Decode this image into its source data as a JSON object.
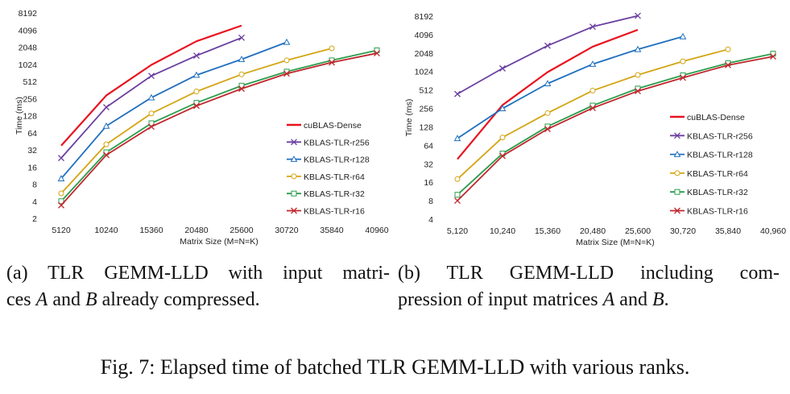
{
  "chart_data": [
    {
      "type": "line",
      "xlabel": "Matrix Size (M=N=K)",
      "ylabel": "Time (ms)",
      "y_scale": "log2",
      "ylim": [
        2,
        8192
      ],
      "x_tick_labels": [
        "5120",
        "10240",
        "15360",
        "20480",
        "25600",
        "30720",
        "35840",
        "40960"
      ],
      "y_tick_labels": [
        "2",
        "4",
        "8",
        "16",
        "32",
        "64",
        "128",
        "256",
        "512",
        "1024",
        "2048",
        "4096",
        "8192"
      ],
      "legend_position": "right",
      "series": [
        {
          "name": "cuBLAS-Dense",
          "color": "#e8131f",
          "marker": "none",
          "x": [
            5120,
            10240,
            15360,
            20480,
            25600
          ],
          "values": [
            38,
            290,
            1000,
            2600,
            4900
          ]
        },
        {
          "name": "KBLAS-TLR-r256",
          "color": "#6b3fa0",
          "marker": "x",
          "x": [
            5120,
            10240,
            15360,
            20480,
            25600
          ],
          "values": [
            23,
            180,
            640,
            1450,
            3000
          ]
        },
        {
          "name": "KBLAS-TLR-r128",
          "color": "#1f6fbf",
          "marker": "triangle",
          "x": [
            5120,
            10240,
            15360,
            20480,
            25600,
            30720
          ],
          "values": [
            10,
            84,
            265,
            660,
            1250,
            2500
          ]
        },
        {
          "name": "KBLAS-TLR-r64",
          "color": "#d4a514",
          "marker": "circle",
          "x": [
            5120,
            10240,
            15360,
            20480,
            25600,
            30720,
            35840
          ],
          "values": [
            5.5,
            40,
            140,
            340,
            680,
            1200,
            1950
          ]
        },
        {
          "name": "KBLAS-TLR-r32",
          "color": "#2a9d4b",
          "marker": "square",
          "x": [
            5120,
            10240,
            15360,
            20480,
            25600,
            30720,
            35840,
            40960
          ],
          "values": [
            4,
            29,
            94,
            215,
            430,
            760,
            1200,
            1800
          ]
        },
        {
          "name": "KBLAS-TLR-r16",
          "color": "#c0272d",
          "marker": "x",
          "x": [
            5120,
            10240,
            15360,
            20480,
            25600,
            30720,
            35840,
            40960
          ],
          "values": [
            3.4,
            26,
            82,
            190,
            380,
            700,
            1100,
            1600
          ]
        }
      ]
    },
    {
      "type": "line",
      "xlabel": "Matrix Size (M=N=K)",
      "ylabel": "Time (ms)",
      "y_scale": "log2",
      "ylim": [
        4,
        8192
      ],
      "x_tick_labels": [
        "5,120",
        "10,240",
        "15,360",
        "20,480",
        "25,600",
        "30,720",
        "35,840",
        "40,960"
      ],
      "y_tick_labels": [
        "4",
        "8",
        "16",
        "32",
        "64",
        "128",
        "256",
        "512",
        "1024",
        "2048",
        "4096",
        "8192"
      ],
      "legend_position": "right",
      "series": [
        {
          "name": "cuBLAS-Dense",
          "color": "#e8131f",
          "marker": "none",
          "x": [
            5120,
            10240,
            15360,
            20480,
            25600
          ],
          "values": [
            38,
            290,
            1000,
            2600,
            4900
          ]
        },
        {
          "name": "KBLAS-TLR-r256",
          "color": "#6b3fa0",
          "marker": "x",
          "x": [
            5120,
            10240,
            15360,
            20480,
            25600
          ],
          "values": [
            440,
            1150,
            2700,
            5500,
            8300
          ]
        },
        {
          "name": "KBLAS-TLR-r128",
          "color": "#1f6fbf",
          "marker": "triangle",
          "x": [
            5120,
            10240,
            15360,
            20480,
            25600,
            30720
          ],
          "values": [
            83,
            255,
            650,
            1350,
            2350,
            3800
          ]
        },
        {
          "name": "KBLAS-TLR-r64",
          "color": "#d4a514",
          "marker": "circle",
          "x": [
            5120,
            10240,
            15360,
            20480,
            25600,
            30720,
            35840
          ],
          "values": [
            18,
            86,
            215,
            500,
            900,
            1500,
            2350
          ]
        },
        {
          "name": "KBLAS-TLR-r32",
          "color": "#2a9d4b",
          "marker": "square",
          "x": [
            5120,
            10240,
            15360,
            20480,
            25600,
            30720,
            35840,
            40960
          ],
          "values": [
            10,
            47,
            130,
            285,
            540,
            890,
            1400,
            2000
          ]
        },
        {
          "name": "KBLAS-TLR-r16",
          "color": "#c0272d",
          "marker": "x",
          "x": [
            5120,
            10240,
            15360,
            20480,
            25600,
            30720,
            35840,
            40960
          ],
          "values": [
            8,
            43,
            118,
            260,
            490,
            810,
            1300,
            1800
          ]
        }
      ]
    }
  ],
  "captions": {
    "a_line1": "(a) TLR GEMM-LLD with input matri-",
    "a_line2": "ces A and B already compressed.",
    "b_line1": "(b) TLR GEMM-LLD including com-",
    "b_line2": "pression of input matrices A and B.",
    "figure": "Fig. 7: Elapsed time of batched TLR GEMM-LLD with various ranks."
  }
}
